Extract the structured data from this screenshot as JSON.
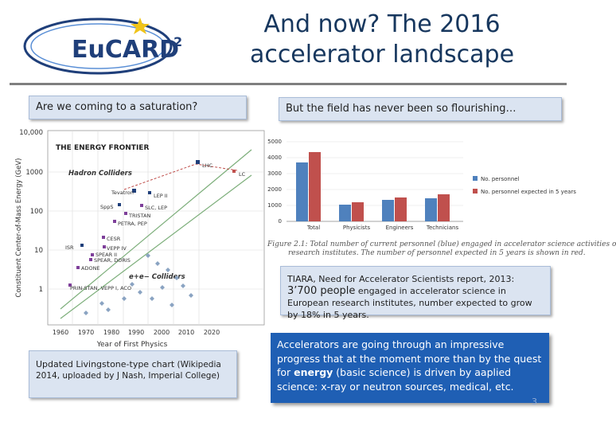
{
  "header": {
    "logo_text": "EuCARD",
    "logo_superscript": "2",
    "title_line1": "And now? The 2016",
    "title_line2": "accelerator landscape"
  },
  "left_label": "Are we coming to a saturation?",
  "right_label": "But the field has never been so flourishing…",
  "livingston": {
    "title": "THE ENERGY FRONTIER",
    "ylabel": "Constituent Center-of-Mass Energy (GeV)",
    "xlabel": "Year of First Physics",
    "yticks": [
      "10,000",
      "1000",
      "100",
      "10",
      "1"
    ],
    "xticks": [
      "1960",
      "1970",
      "1980",
      "1990",
      "2000",
      "2010",
      "2020"
    ],
    "hadron_label": "Hadron Colliders",
    "lepton_label": "e+e− Colliders",
    "points": [
      "LHC",
      "LC",
      "Tevatron",
      "LEP II",
      "SppS",
      "SLC, LEP",
      "TRISTAN",
      "PETRA, PEP",
      "ISR",
      "CESR",
      "VEPP IV",
      "SPEAR II",
      "SPEAR, DORIS",
      "ADONE",
      "PRIN-STAN, VEPP I, ACO"
    ]
  },
  "livingston_caption": {
    "main": "Updated Livingstone-type chart",
    "rest": " (Wikipedia 2014, uploaded by J Nash, Imperial College)"
  },
  "tiara_chart": {
    "type": "bar",
    "categories": [
      "Total",
      "Physicists",
      "Engineers",
      "Technicians"
    ],
    "series": [
      {
        "name": "No. personnel",
        "values": [
          3700,
          1050,
          1350,
          1450
        ]
      },
      {
        "name": "No. personnel expected in 5 years",
        "values": [
          4350,
          1200,
          1500,
          1700
        ]
      }
    ],
    "yticks": [
      "5000",
      "4000",
      "3000",
      "2000",
      "1000",
      "0"
    ],
    "ylim": [
      0,
      5000
    ],
    "colors": [
      "#4f81bd",
      "#c0504d"
    ]
  },
  "figure_caption": {
    "line1": "Figure 2.1: Total number of current personnel (blue) engaged in accelerator science activities o",
    "line2": "research institutes. The number of personnel expected in 5 years is shown in red."
  },
  "tiara_box": {
    "prefix": "TIARA, Need for Accelerator Scientists report, 2013: ",
    "number": "3’700 people",
    "suffix": " engaged in accelerator science in European research institutes, number expected to grow by 18% in 5 years."
  },
  "accel_box": {
    "part1": "Accelerators are going through an impressive progress that at the moment more than by the quest for ",
    "bold": "energy",
    "part2": " (basic science) is driven by aaplied science: x-ray or neutron sources, medical, etc."
  },
  "page_number": "3"
}
